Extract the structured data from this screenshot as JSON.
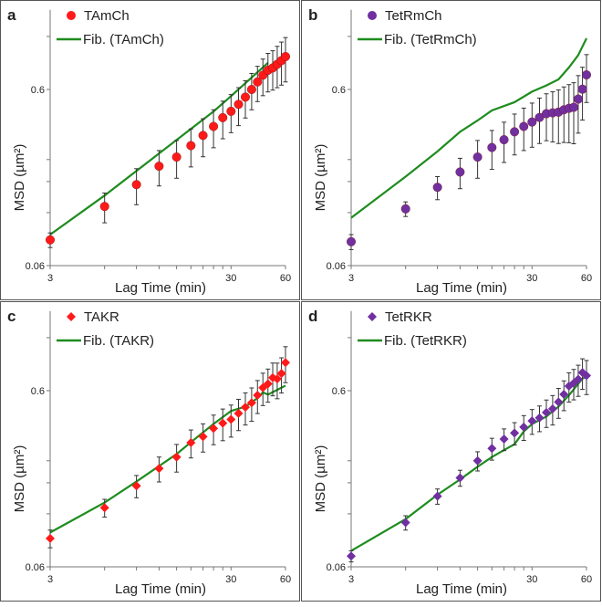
{
  "chart_data": [
    {
      "panel": "a",
      "type": "scatter",
      "xlabel": "Lag Time (min)",
      "ylabel": "MSD (µm²)",
      "ylabel_sup": "2",
      "xscale": "log",
      "yscale": "log",
      "xlim": [
        3,
        60
      ],
      "ylim": [
        0.06,
        1.7
      ],
      "xticks": [
        "3",
        "30",
        "60"
      ],
      "yticks": [
        "0.06",
        "0.6"
      ],
      "legend": [
        "TAmCh",
        "Fib. (TAmCh)"
      ],
      "legend_position": "top-left",
      "marker": "circle",
      "color": "#ff1a1a",
      "x": [
        3,
        6,
        9,
        12,
        15,
        18,
        21,
        24,
        27,
        30,
        33,
        36,
        39,
        42,
        45,
        48,
        51,
        54,
        57,
        60
      ],
      "y": [
        0.084,
        0.13,
        0.173,
        0.22,
        0.248,
        0.288,
        0.329,
        0.37,
        0.415,
        0.451,
        0.494,
        0.543,
        0.6,
        0.662,
        0.723,
        0.771,
        0.795,
        0.834,
        0.875,
        0.922
      ],
      "err": [
        0.008,
        0.025,
        0.04,
        0.05,
        0.06,
        0.07,
        0.08,
        0.09,
        0.1,
        0.11,
        0.12,
        0.13,
        0.14,
        0.15,
        0.17,
        0.19,
        0.2,
        0.22,
        0.24,
        0.26
      ],
      "fit": {
        "x": [
          3,
          6,
          12,
          24,
          30,
          48
        ],
        "y": [
          0.09,
          0.15,
          0.26,
          0.45,
          0.55,
          0.85
        ]
      }
    },
    {
      "panel": "b",
      "type": "scatter",
      "xlabel": "Lag Time (min)",
      "ylabel": "MSD (µm²)",
      "ylabel_sup": "2",
      "xscale": "log",
      "yscale": "log",
      "xlim": [
        3,
        60
      ],
      "ylim": [
        0.06,
        1.7
      ],
      "xticks": [
        "3",
        "30",
        "60"
      ],
      "yticks": [
        "0.06",
        "0.6"
      ],
      "legend": [
        "TetRmCh",
        "Fib. (TetRmCh)"
      ],
      "legend_position": "top-left",
      "marker": "circle",
      "color": "#7030a0",
      "x": [
        3,
        6,
        9,
        12,
        15,
        18,
        21,
        24,
        27,
        30,
        33,
        36,
        39,
        42,
        45,
        48,
        51,
        54,
        57,
        60
      ],
      "y": [
        0.082,
        0.126,
        0.167,
        0.204,
        0.248,
        0.281,
        0.311,
        0.345,
        0.37,
        0.392,
        0.416,
        0.437,
        0.442,
        0.446,
        0.46,
        0.469,
        0.475,
        0.529,
        0.602,
        0.726
      ],
      "err": [
        0.008,
        0.012,
        0.025,
        0.04,
        0.06,
        0.07,
        0.08,
        0.09,
        0.1,
        0.11,
        0.12,
        0.13,
        0.14,
        0.15,
        0.16,
        0.17,
        0.18,
        0.19,
        0.2,
        0.22
      ],
      "fit": {
        "x": [
          3,
          6,
          9,
          12,
          15,
          18,
          24,
          30,
          36,
          42,
          48,
          54,
          60
        ],
        "y": [
          0.112,
          0.192,
          0.267,
          0.345,
          0.4,
          0.456,
          0.508,
          0.583,
          0.632,
          0.684,
          0.8,
          0.94,
          1.17
        ]
      }
    },
    {
      "panel": "c",
      "type": "scatter",
      "xlabel": "Lag Time (min)",
      "ylabel": "MSD (µm²)",
      "ylabel_sup": "2",
      "xscale": "log",
      "yscale": "log",
      "xlim": [
        3,
        60
      ],
      "ylim": [
        0.06,
        1.7
      ],
      "xticks": [
        "3",
        "30",
        "60"
      ],
      "yticks": [
        "0.06",
        "0.6"
      ],
      "legend": [
        "TAKR",
        "Fib. (TAKR)"
      ],
      "legend_position": "top-left",
      "marker": "diamond",
      "color": "#ff1a1a",
      "x": [
        3,
        6,
        9,
        12,
        15,
        18,
        21,
        24,
        27,
        30,
        33,
        36,
        39,
        42,
        45,
        48,
        51,
        54,
        57,
        60
      ],
      "y": [
        0.087,
        0.13,
        0.173,
        0.217,
        0.252,
        0.304,
        0.329,
        0.366,
        0.392,
        0.412,
        0.446,
        0.483,
        0.512,
        0.565,
        0.624,
        0.656,
        0.711,
        0.7,
        0.752,
        0.866
      ],
      "err": [
        0.01,
        0.015,
        0.025,
        0.035,
        0.045,
        0.055,
        0.06,
        0.07,
        0.08,
        0.085,
        0.09,
        0.1,
        0.11,
        0.12,
        0.13,
        0.14,
        0.15,
        0.16,
        0.17,
        0.2
      ],
      "fit": {
        "x": [
          3,
          6,
          9,
          12,
          15,
          18,
          24,
          30,
          36,
          42,
          45,
          48,
          54,
          60
        ],
        "y": [
          0.094,
          0.139,
          0.183,
          0.224,
          0.262,
          0.306,
          0.388,
          0.46,
          0.487,
          0.544,
          0.587,
          0.57,
          0.606,
          0.641
        ]
      }
    },
    {
      "panel": "d",
      "type": "scatter",
      "xlabel": "Lag Time (min)",
      "ylabel": "MSD (µm²)",
      "ylabel_sup": "2",
      "xscale": "log",
      "yscale": "log",
      "xlim": [
        3,
        60
      ],
      "ylim": [
        0.06,
        1.7
      ],
      "xticks": [
        "3",
        "30",
        "60"
      ],
      "yticks": [
        "0.06",
        "0.6"
      ],
      "legend": [
        "TetRKR",
        "Fib. (TetRKR)"
      ],
      "legend_position": "top-left",
      "marker": "diamond",
      "color": "#7030a0",
      "x": [
        3,
        6,
        9,
        12,
        15,
        18,
        21,
        24,
        27,
        30,
        33,
        36,
        39,
        42,
        45,
        48,
        51,
        54,
        57,
        60
      ],
      "y": [
        0.069,
        0.107,
        0.151,
        0.192,
        0.24,
        0.282,
        0.319,
        0.345,
        0.373,
        0.404,
        0.421,
        0.451,
        0.473,
        0.518,
        0.572,
        0.637,
        0.662,
        0.697,
        0.76,
        0.73
      ],
      "err": [
        0.005,
        0.01,
        0.015,
        0.02,
        0.03,
        0.04,
        0.045,
        0.05,
        0.06,
        0.065,
        0.07,
        0.08,
        0.09,
        0.1,
        0.11,
        0.12,
        0.13,
        0.14,
        0.15,
        0.16
      ],
      "fit": {
        "x": [
          3,
          6,
          9,
          12,
          15,
          18,
          21,
          24,
          27,
          30,
          36,
          42,
          48,
          57,
          60
        ],
        "y": [
          0.074,
          0.112,
          0.154,
          0.188,
          0.222,
          0.252,
          0.276,
          0.298,
          0.352,
          0.388,
          0.428,
          0.487,
          0.565,
          0.703,
          0.72
        ]
      }
    }
  ],
  "colors": {
    "fit": "#1e8c1e",
    "errorbar": "#333333"
  }
}
